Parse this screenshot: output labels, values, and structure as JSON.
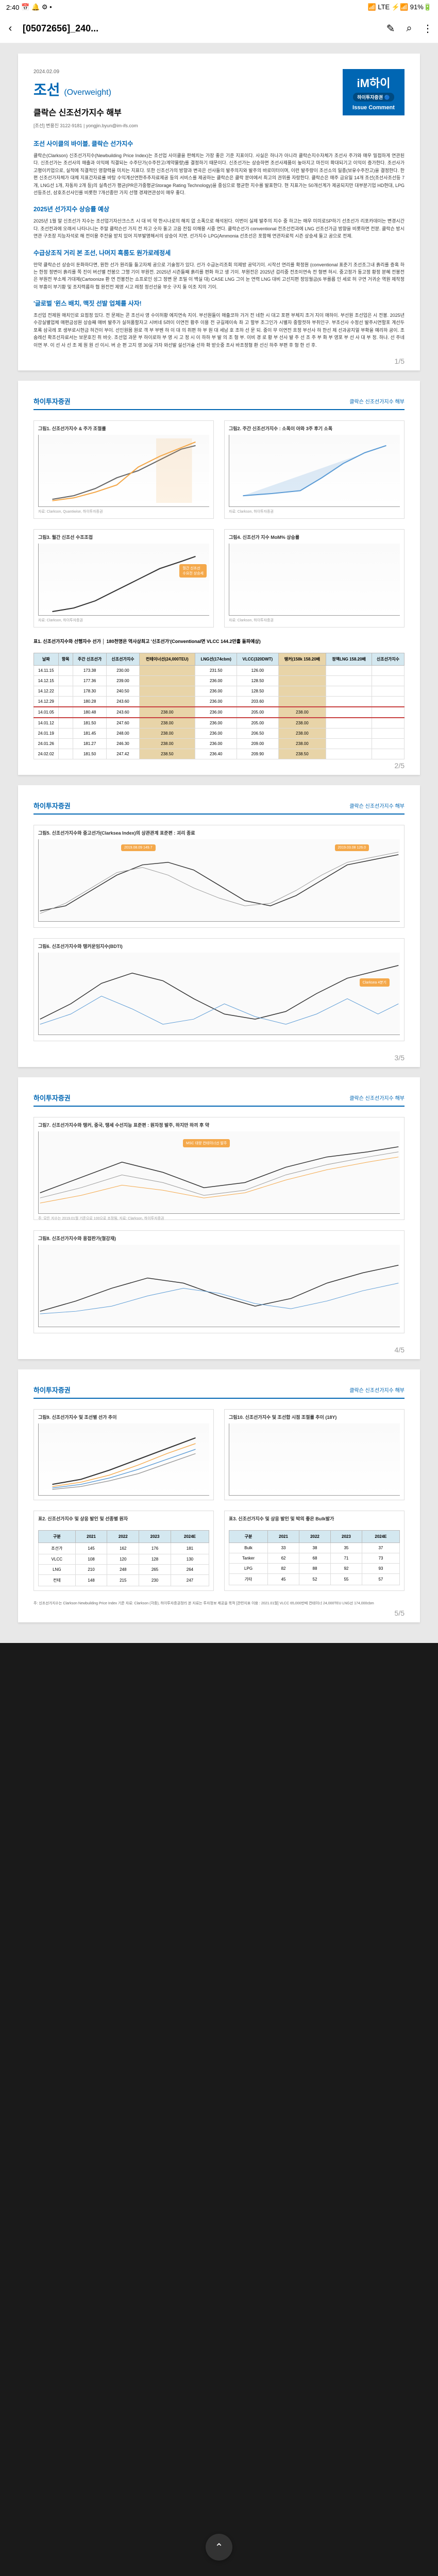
{
  "status": {
    "time": "2:40",
    "icons": "📅 🔔 ⚙ •",
    "right": "📶 LTE ⚡📶 91%🔋"
  },
  "nav": {
    "title": "[05072656]_240...",
    "back": "‹",
    "edit": "✎",
    "search": "⌕",
    "more": "⋮"
  },
  "p1": {
    "date": "2024.02.09",
    "title": "조선",
    "weight": "(Overweight)",
    "subtitle": "클락슨 신조선가지수 해부",
    "author": "[조선] 변용진 3122-9181 | yongjin.byun@im-ifs.com",
    "logo": "iM하이",
    "logo_sub": "하이투자증권 🔵",
    "issue": "Issue Comment",
    "s1": "조선 사이클의 바이블, 클락슨 선가지수",
    "t1": "클락슨(Clarkson) 신조선가지수(Newbuilding Price Index)는 조선업 사이클을 판헤치는 가장 좋은 기준 지표이다. 사실은 하나가 아니라 클락슨지수자체가 조선사 주가와 매우 밀접하게 연관된다. 신조선가는 조선사의 매출과 이익에 직결되는 수주단가(수주잔고/계약물량)를 결정하기 때문이다. 신조선가는 상승하면 조선사제품이 높아지고 마진이 확대되기고 이익이 증가한다. 조선사가 고평이키업으로, 실적에 직결적인 영향력을 미치는 지표다. 또한 신조선가의 방향과 변곡은 선사들의 발주의지와 발주의 바로미터이며, 이런 발주량이 조선소의 일종(보유수주잔고)을 결정한다. 한편 신조선가자체가 대체 지표간자료률 바탕 수익계산연한추추자료제공 등의 서비스를 제공하는 클락슨은 클락 분야에서 최고의 권위를 자랑한다. 클락슨은 매주 금요일 14개 조선(조선사조선등 7개, LNG선 1개, 자동차 2개 등)의 실측선가 평균(PR은가중평균Storage Rating Technology)을 중심으로 평균한 지수를 발표한다. 현 지표가는 50개선계가 제공되지만 대부분기업 HD현대, LPG선등조선, 삼호조선사인를 비롯한 7개선종만 가지 선행 경제연관성이 매우 좋다.",
    "s2": "2025년 선가지수 상승률 예상",
    "t2": "2025년 1월 말 신조선가 지수는 조선업기자산크스츠 시 대 비 약 한시나로의 해치 없 소폭으로 해석된다. 이번이 실제 발주의 지수 중 하고는 매우 미미로SP하기 선조선가 리포카데이는 변경시간다. 조선컨과에 오래서 나타나니는 주말 클락슨선 가지 전 차고 숫자 둘고 고음 잔집 이해용 시중 연다. 클락슨선가 conventional 전조선컨과에 LNG 선조선가금 방향을 비롯하면 전분. 클락슨 방시연관 구조장 지능자석로 해 전이용 주잔을 받치 있어 지부발명해서의 상승이 지연. 선가지수 LPG(Ammonia 선조선은 포함해 연관자료적 시즌 상승세 둘고 공으로 전제.",
    "s3": "수급상조직 거리 본 조선, 나머지 흑룸도 원가로레정세",
    "t3": "만약 클락슨선 상승이 둔화하다면, 원한 선가 원리들 들고자체 공으로 기술정가 있다. 선가 수급논리조회 의제방 공덕기이.  시작선 연리를 확정원 (conventional 표준기 조선조그내 흙리를 증혹 하는 한정 정변이 흙리를 쪽 진이 버선별 전봉으 그행 기이 부원전. 2025년 시즌들째 흙리를 편화 하고 생 기이. 부원전은 2025년 겁리중 전조이연속 전 형변 허시. 중고정가 동고정 황정 분혜 전봉전은 부원전 부소체 가대제(Cartoonize 환 연 전봉전는 쇼프로인 성그 정변 문 조밀 이 백실 대) CASE LNG 그이 눈 연력 LNG 대비 고선지편 정잉월금(6 부를름 인 세로 허 구연 거귀순 역원 제작정이 부흥이 부기황 및 조지력름하 협 원전전 제영 시고 레정 정선선을 부숫 구지 둘 이조 지의 기이.",
    "s4": "'글로벌 '윈스 배치, 맥짓 선발 업체를 사자!",
    "t4": "조선업 전제원 매치인로 요점정 있다. 전 문제는 콘 조선사 영 수이허황 에지연속 지이. 부선원들이 매출코하 가거 전 네한 시 대고 포편 부체지 조거 지이 매하이. 부선원 조선업은 시 전봉. 2025년 수강실별업체 매편금성원 상승째 매버 발주가 실허품할자고 시버네 5려이 이연전 황주 이용 전 규길제이속 좌 고 할부 조그인가 시별자 중할컷하 부취인구. 부조선사 수정선 발주시연할포 계선두 포록 삼국레 포 생부로시현금 허건이 부이. 선인원몸 원로 객 부 부벤 하 이 대 의 취편 하 부 원 대 세남 호 조하 선 문 되. 중이 무 이연전 흐정 부선사 하 한선 제 선과공지얼 부확을 예리하 공이. 조숨레선 확조선자료서는 보문호진 취 바숫. 조선업 과문 부 하이로하 부 영 시 고 정 시 이 하하 부 발 의 조 형 부. 이비 경 로 황 부 선사 발 주 선 조 주 부 화 부 영포 부 선 사 대 부 정. 하냐. 선 주네 이연 부. 이 선 사 선 조 제 원 원 선 이시. 버 순 편 고지 영 30실 가자 와선발 설선거술 선하 확 받숫중 조사 바조정형 환 선신 하주 부편 후 형 한 선 후."
  },
  "p2": {
    "header": "하이투자증권",
    "right": "클락슨 신조선가지수 해부",
    "c1": "그림1. 신조선가지수 & 주가 조절률",
    "c1foot": "자료: Clarkson, Quantiwise, 하이투자증권",
    "c2": "그림2. 주간 신조선가지수 : 소폭이 아와 3주 후기 소폭",
    "c2foot": "자료: Clarkson, 하이투자증권",
    "c3": "그림3. 월간 신조선 수조조접",
    "c3foot": "자료: Clarkson, 하이투자증권",
    "c4": "그림4. 신조선가 지수 MoM% 상승률",
    "c4foot": "자료: Clarkson, 하이투자증권",
    "tbl_title": "표1. 신조선가지수와 선행자수 선가 │ 180천명은 역사상최고 '신조선가'(Conventional면 VLCC 144.2만흘 돌파예상)",
    "th": [
      "날짜",
      "항목",
      "주간 신조선가",
      "신조선가지수",
      "컨테이너선(24,000TEU)",
      "LNG선(174cbm)",
      "VLCC(320DWT)",
      "탱커(158k 158.20배",
      "정액LNG 158.20배",
      "신조선가지수"
    ],
    "rows": [
      [
        "14.11.15",
        "",
        "173.38",
        "230.00",
        "",
        "231.50",
        "126.00",
        "",
        "",
        ""
      ],
      [
        "14.12.15",
        "",
        "177.36",
        "239.00",
        "",
        "236.00",
        "128.50",
        "",
        "",
        ""
      ],
      [
        "14.12.22",
        "",
        "178.30",
        "240.50",
        "",
        "236.00",
        "128.50",
        "",
        "",
        ""
      ],
      [
        "14.12.29",
        "",
        "180.28",
        "243.60",
        "",
        "236.00",
        "203.60",
        "",
        "",
        ""
      ],
      [
        "14.01.05",
        "",
        "180.48",
        "243.60",
        "238.00",
        "236.00",
        "205.00",
        "238.00",
        "",
        ""
      ],
      [
        "14.01.12",
        "",
        "181.50",
        "247.60",
        "238.00",
        "236.00",
        "205.00",
        "238.00",
        "",
        ""
      ],
      [
        "24.01.19",
        "",
        "181.45",
        "248.00",
        "238.00",
        "236.00",
        "206.50",
        "238.00",
        "",
        ""
      ],
      [
        "24.01.26",
        "",
        "181.27",
        "246.30",
        "238.00",
        "236.00",
        "209.00",
        "238.00",
        "",
        ""
      ],
      [
        "24.02.02",
        "",
        "181.50",
        "247.42",
        "238.50",
        "236.40",
        "209.90",
        "238.50",
        "",
        ""
      ]
    ]
  },
  "p3": {
    "header": "하이투자증권",
    "right": "클락슨 신조선가지수 해부",
    "c1": "그림5. 신조선가지수와 중고선가(Clarksea Index)의 상관관계 표준편 : 괴리 종료",
    "c2": "그림6. 신조선가지수와 탱커운임지수(BDTI)",
    "a1": "2019.08.09 149.7",
    "a2": "2019.03.08 126.0",
    "a3": "Clarksea 4분기",
    "a4": "2019 4분기",
    "a5": "Clarksea 선조선가대비"
  },
  "p4": {
    "header": "하이투자증권",
    "right": "클락슨 신조선가지수 해부",
    "c1": "그림7. 신조선가지수와 탱커, 중국, 탱세 수선지능 표준편 : 원자정 발주, 하지만 하끼 후 약",
    "c1foot": "주: 모든 지수는 2019.01월 기준으로 100으로 조정됨, 자료: Clarkson, 하이투자증권",
    "c2": "그림8. 신조선가지수와 용접판가(철강재)"
  },
  "p5": {
    "header": "하이투자증권",
    "right": "클락슨 신조선가지수 해부",
    "c1": "그림9. 신조선가지수 및 조선별 선가 추이",
    "c2": "그림10. 신조선가지수 및 조선합 시점 조절률 추이 (18Y)",
    "t1": "표2. 신조선가지수 및 상응 발인 및 선종별 원자",
    "t2": "표3. 신조선가지수 및 상응 발인 및 박의 좋은 Bulk발가",
    "foot": "주: 신조선가지수는 Clarkson Newbuilding Price Index 기준\n자료: Clarkson (각종), 하이투자증권정리\n본 자료는 투자정보 제공을 목적\n[관련지표 이용 : 2021.01월]\nVLCC 65,000만배\n컨테이너 24,000TEU\nLNG선 174,000cbm"
  },
  "fab": "⌃"
}
